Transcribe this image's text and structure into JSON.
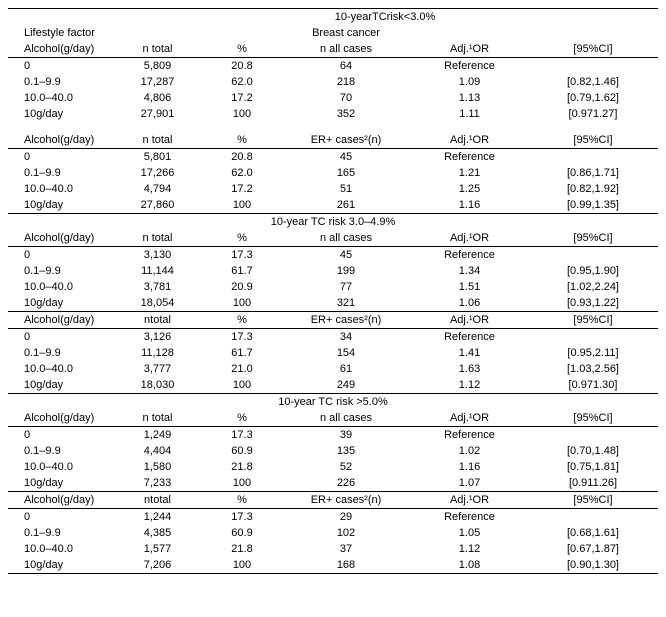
{
  "sections": [
    {
      "title": "10-yearTCrisk<3.0%",
      "subtitle": "Breast cancer",
      "blocks": [
        {
          "headers": [
            "Lifestyle factor\nAlcohol(g/day)",
            "n total",
            "%",
            "n all cases",
            "Adj.¹OR",
            "[95%CI]"
          ],
          "rows": [
            [
              "0",
              "5,809",
              "20.8",
              "64",
              "Reference",
              ""
            ],
            [
              "0.1–9.9",
              "17,287",
              "62.0",
              "218",
              "1.09",
              "[0.82,1.46]"
            ],
            [
              "10.0–40.0",
              "4,806",
              "17.2",
              "70",
              "1.13",
              "[0.79,1.62]"
            ],
            [
              "10g/day",
              "27,901",
              "100",
              "352",
              "1.11",
              "[0.971.27]"
            ]
          ]
        },
        {
          "headers": [
            "Alcohol(g/day)",
            "n total",
            "%",
            "ER+ cases²(n)",
            "Adj.¹OR",
            "[95%CI]"
          ],
          "rows": [
            [
              "0",
              "5,801",
              "20.8",
              "45",
              "Reference",
              ""
            ],
            [
              "0.1–9.9",
              "17,266",
              "62.0",
              "165",
              "1.21",
              "[0.86,1.71]"
            ],
            [
              "10.0–40.0",
              "4,794",
              "17.2",
              "51",
              "1.25",
              "[0.82,1.92]"
            ],
            [
              "10g/day",
              "27,860",
              "100",
              "261",
              "1.16",
              "[0.99,1.35]"
            ]
          ]
        }
      ]
    },
    {
      "title": "10-year TC risk 3.0–4.9%",
      "subtitle": "",
      "blocks": [
        {
          "headers": [
            "Alcohol(g/day)",
            "n total",
            "%",
            "n all cases",
            "Adj.¹OR",
            "[95%CI]"
          ],
          "rows": [
            [
              "0",
              "3,130",
              "17.3",
              "45",
              "Reference",
              ""
            ],
            [
              "0.1–9.9",
              "11,144",
              "61.7",
              "199",
              "1.34",
              "[0.95,1.90]"
            ],
            [
              "10.0–40.0",
              "3,781",
              "20.9",
              "77",
              "1.51",
              "[1.02,2.24]"
            ],
            [
              "10g/day",
              "18,054",
              "100",
              "321",
              "1.06",
              "[0.93,1.22]"
            ]
          ]
        },
        {
          "headers": [
            "Alcohol(g/day)",
            "ntotal",
            "%",
            "ER+ cases²(n)",
            "Adj.¹OR",
            "[95%CI]"
          ],
          "rows": [
            [
              "0",
              "3,126",
              "17.3",
              "34",
              "Reference",
              ""
            ],
            [
              "0.1–9.9",
              "11,128",
              "61.7",
              "154",
              "1.41",
              "[0.95,2.11]"
            ],
            [
              "10.0–40.0",
              "3,777",
              "21.0",
              "61",
              "1.63",
              "[1.03,2.56]"
            ],
            [
              "10g/day",
              "18,030",
              "100",
              "249",
              "1.12",
              "[0.971.30]"
            ]
          ]
        }
      ]
    },
    {
      "title": "10-year TC risk  >5.0%",
      "subtitle": "",
      "blocks": [
        {
          "headers": [
            "Alcohol(g/day)",
            "n total",
            "%",
            "n all cases",
            "Adj.¹OR",
            "[95%CI]"
          ],
          "rows": [
            [
              "0",
              "1,249",
              "17.3",
              "39",
              "Reference",
              ""
            ],
            [
              "0.1–9.9",
              "4,404",
              "60.9",
              "135",
              "1.02",
              "[0.70,1.48]"
            ],
            [
              "10.0–40.0",
              "1,580",
              "21.8",
              "52",
              "1.16",
              "[0.75,1.81]"
            ],
            [
              "10g/day",
              "7,233",
              "100",
              "226",
              "1.07",
              "[0.911.26]"
            ]
          ]
        },
        {
          "headers": [
            "Alcohol(g/day)",
            "ntotal",
            "%",
            "ER+ cases²(n)",
            "Adj.¹OR",
            "[95%CI]"
          ],
          "rows": [
            [
              "0",
              "1,244",
              "17.3",
              "29",
              "Reference",
              ""
            ],
            [
              "0.1–9.9",
              "4,385",
              "60.9",
              "102",
              "1.05",
              "[0.68,1.61]"
            ],
            [
              "10.0–40.0",
              "1,577",
              "21.8",
              "37",
              "1.12",
              "[0.67,1.87]"
            ],
            [
              "10g/day",
              "7,206",
              "100",
              "168",
              "1.08",
              "[0.90,1.30]"
            ]
          ]
        }
      ]
    }
  ]
}
